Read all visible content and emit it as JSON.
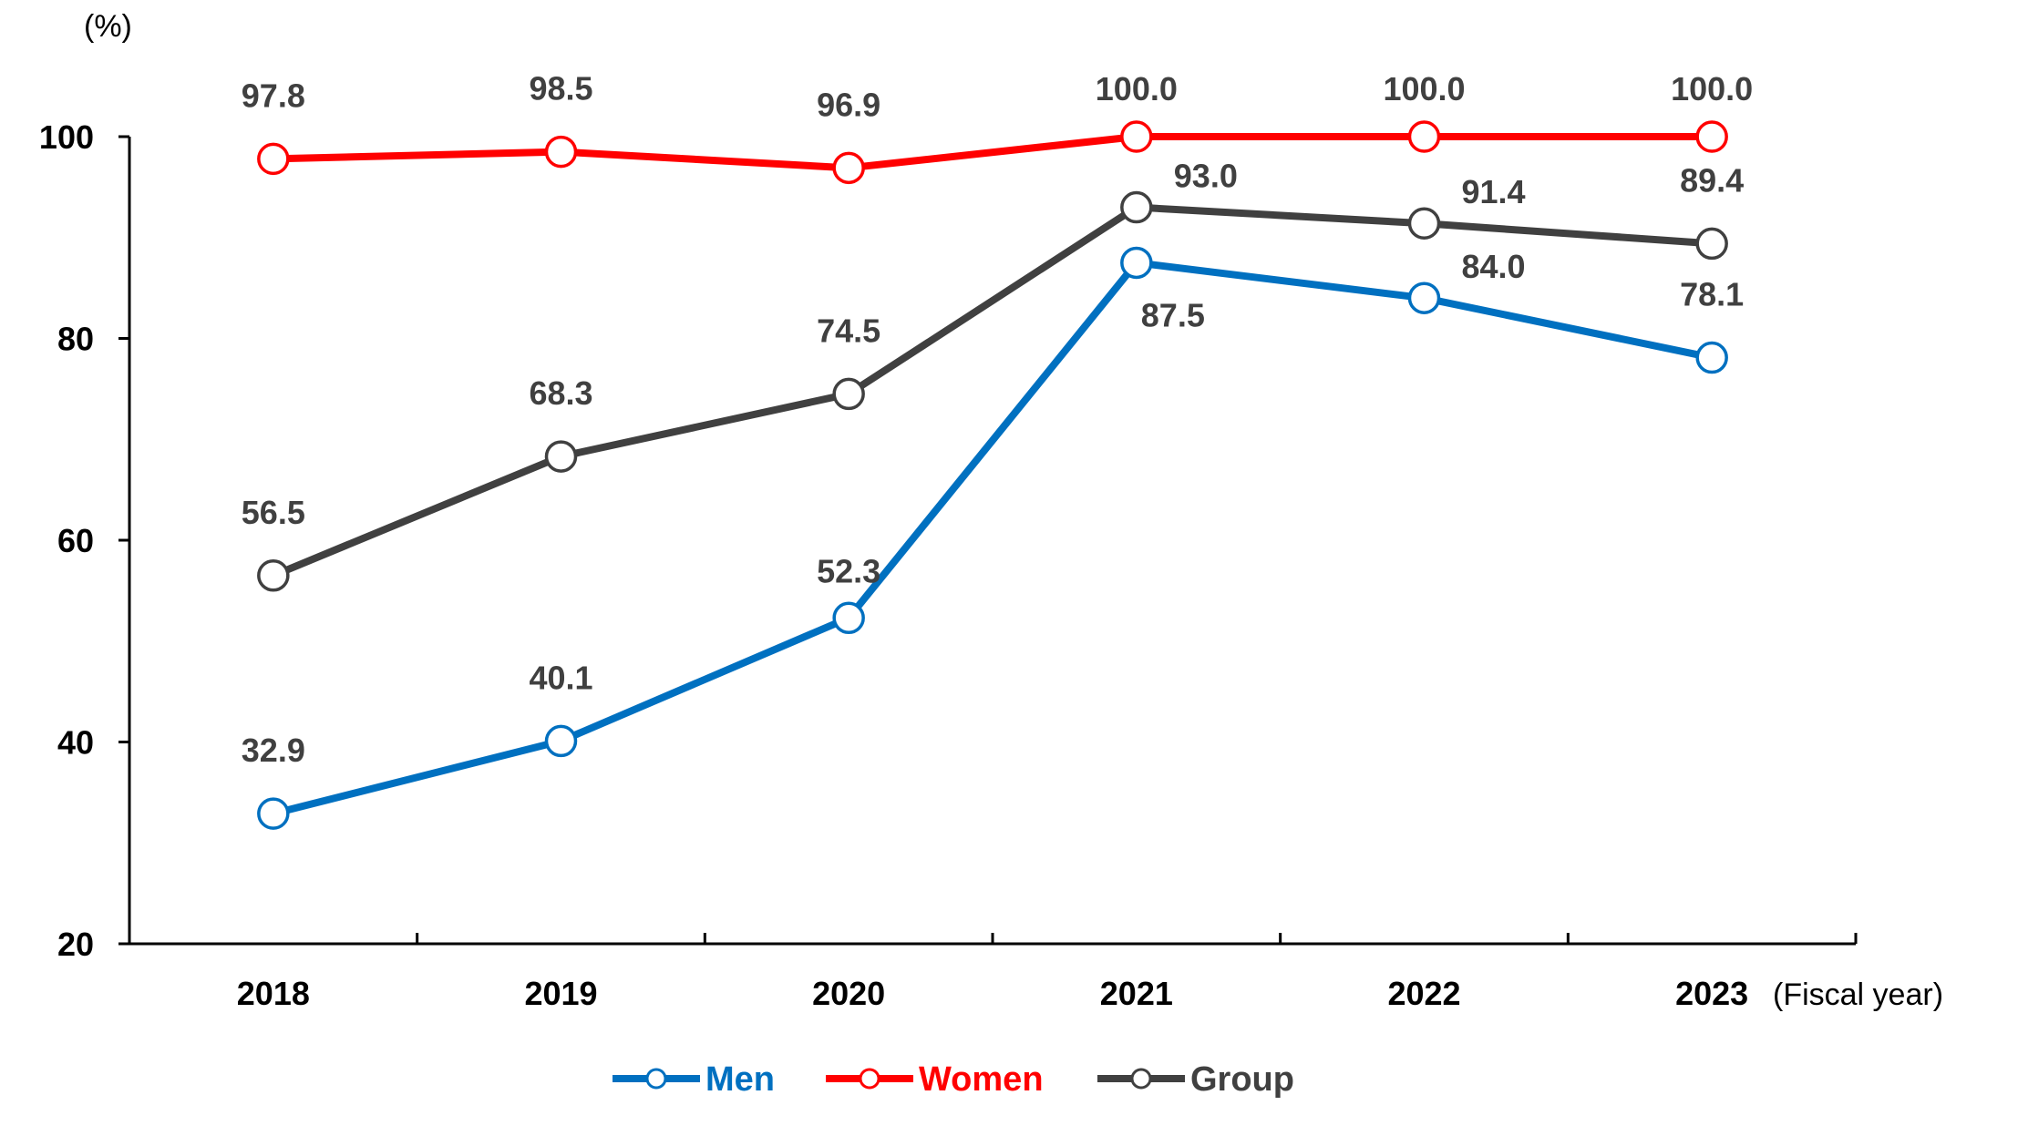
{
  "chart_data": {
    "type": "line",
    "y_unit": "(%)",
    "x_unit": "(Fiscal year)",
    "categories": [
      "2018",
      "2019",
      "2020",
      "2021",
      "2022",
      "2023"
    ],
    "ylim": [
      20,
      100
    ],
    "yticks": [
      "20",
      "40",
      "60",
      "80",
      "100"
    ],
    "grid": false,
    "legend_position": "bottom",
    "series": [
      {
        "name": "Men",
        "color": "#0070C0",
        "values": [
          32.9,
          40.1,
          52.3,
          87.5,
          84.0,
          78.1
        ],
        "labels": [
          "32.9",
          "40.1",
          "52.3",
          "87.5",
          "84.0",
          "78.1"
        ]
      },
      {
        "name": "Women",
        "color": "#FF0000",
        "values": [
          97.8,
          98.5,
          96.9,
          100.0,
          100.0,
          100.0
        ],
        "labels": [
          "97.8",
          "98.5",
          "96.9",
          "100.0",
          "100.0",
          "100.0"
        ]
      },
      {
        "name": "Group",
        "color": "#404040",
        "values": [
          56.5,
          68.3,
          74.5,
          93.0,
          91.4,
          89.4
        ],
        "labels": [
          "56.5",
          "68.3",
          "74.5",
          "93.0",
          "91.4",
          "89.4"
        ]
      }
    ]
  }
}
